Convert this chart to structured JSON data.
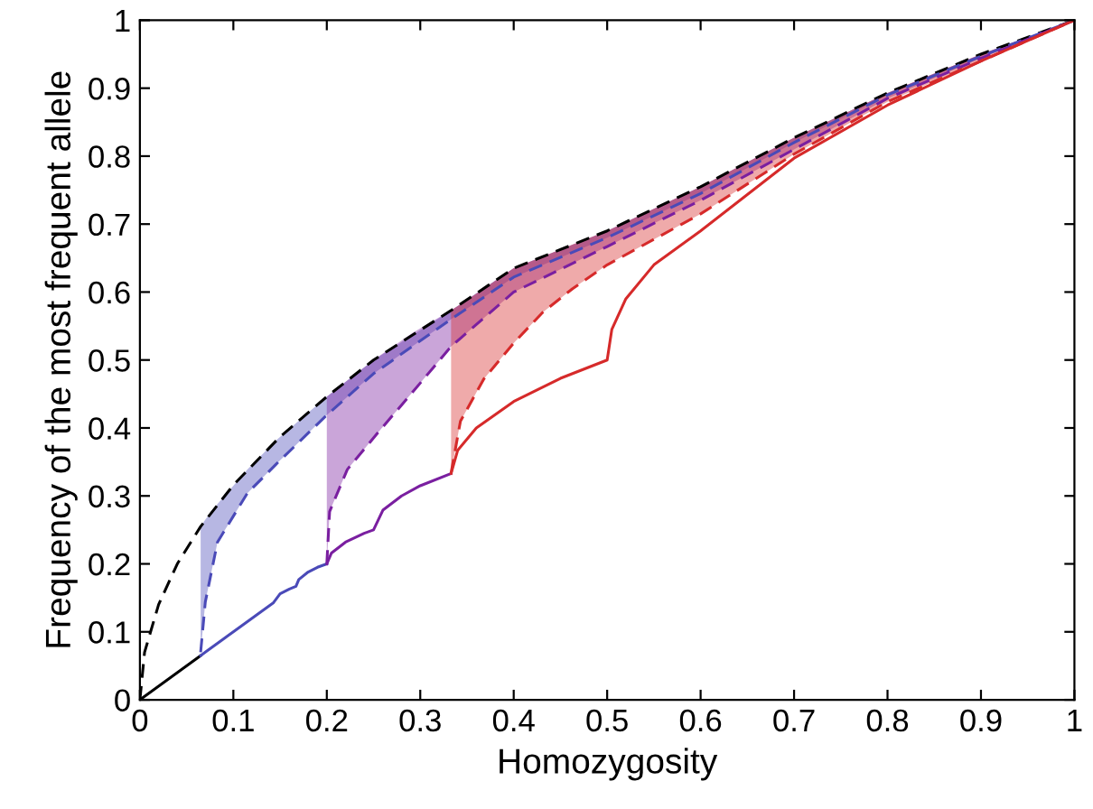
{
  "chart_data": {
    "type": "line",
    "xlabel": "Homozygosity",
    "ylabel": "Frequency of the most frequent allele",
    "xlim": [
      0,
      1
    ],
    "ylim": [
      0,
      1
    ],
    "xticks": [
      0,
      0.1,
      0.2,
      0.3,
      0.4,
      0.5,
      0.6,
      0.7,
      0.8,
      0.9,
      1
    ],
    "yticks": [
      0,
      0.1,
      0.2,
      0.3,
      0.4,
      0.5,
      0.6,
      0.7,
      0.8,
      0.9,
      1
    ],
    "grid": false,
    "legend": false,
    "marker": "none",
    "series": [
      {
        "color": "#000000",
        "line_style": "dashed",
        "x": [
          0,
          0.005,
          0.02,
          0.04,
          0.065,
          0.1,
          0.15,
          0.2,
          0.25,
          0.333,
          0.4,
          0.5,
          0.6,
          0.7,
          0.8,
          0.9,
          1
        ],
        "values": [
          0,
          0.07,
          0.14,
          0.2,
          0.255,
          0.316,
          0.387,
          0.446,
          0.5,
          0.573,
          0.635,
          0.69,
          0.755,
          0.827,
          0.893,
          0.95,
          1
        ]
      },
      {
        "color": "#4a4ab8",
        "line_style": "dashed",
        "x": [
          0.065,
          0.07,
          0.083,
          0.115,
          0.146,
          0.2,
          0.25,
          0.333,
          0.4,
          0.5,
          0.6,
          0.7,
          0.8,
          0.9,
          1
        ],
        "values": [
          0.07,
          0.144,
          0.232,
          0.304,
          0.347,
          0.419,
          0.48,
          0.56,
          0.622,
          0.68,
          0.745,
          0.82,
          0.89,
          0.947,
          1
        ],
        "lower": [
          0.07,
          0.144,
          0.232,
          0.304,
          0.347,
          0.419,
          0.48,
          0.56,
          0.622,
          0.68,
          0.745,
          0.82,
          0.89,
          0.947,
          1
        ],
        "upper": [
          0.255,
          0.265,
          0.288,
          0.339,
          0.382,
          0.446,
          0.5,
          0.573,
          0.635,
          0.69,
          0.755,
          0.827,
          0.893,
          0.95,
          1
        ]
      },
      {
        "color": "#7a1fa0",
        "line_style": "dashed",
        "x": [
          0.2,
          0.203,
          0.222,
          0.254,
          0.292,
          0.333,
          0.4,
          0.5,
          0.6,
          0.7,
          0.8,
          0.9,
          1
        ],
        "values": [
          0.2,
          0.277,
          0.339,
          0.392,
          0.453,
          0.52,
          0.6,
          0.667,
          0.735,
          0.81,
          0.885,
          0.944,
          1
        ],
        "lower": [
          0.2,
          0.277,
          0.339,
          0.392,
          0.453,
          0.52,
          0.6,
          0.667,
          0.735,
          0.81,
          0.885,
          0.944,
          1
        ],
        "upper": [
          0.446,
          0.449,
          0.47,
          0.504,
          0.54,
          0.573,
          0.635,
          0.69,
          0.755,
          0.827,
          0.893,
          0.95,
          1
        ]
      },
      {
        "color": "#d62a2a",
        "line_style": "dashed",
        "x": [
          0.333,
          0.343,
          0.368,
          0.4,
          0.431,
          0.463,
          0.5,
          0.6,
          0.7,
          0.8,
          0.9,
          1
        ],
        "values": [
          0.334,
          0.41,
          0.472,
          0.525,
          0.57,
          0.605,
          0.64,
          0.715,
          0.803,
          0.88,
          0.94,
          1
        ],
        "lower": [
          0.334,
          0.41,
          0.472,
          0.525,
          0.57,
          0.605,
          0.64,
          0.715,
          0.803,
          0.88,
          0.94,
          1
        ],
        "upper": [
          0.573,
          0.582,
          0.605,
          0.635,
          0.652,
          0.67,
          0.69,
          0.755,
          0.827,
          0.893,
          0.95,
          1
        ]
      },
      {
        "color": "#000000",
        "line_style": "solid",
        "x": [
          0,
          0.065
        ],
        "values": [
          0,
          0.065
        ]
      },
      {
        "color": "#4a4ab8",
        "line_style": "solid",
        "x": [
          0.065,
          0.071,
          0.077,
          0.083,
          0.091,
          0.1,
          0.111,
          0.125,
          0.143,
          0.15,
          0.16,
          0.167,
          0.17,
          0.18,
          0.19,
          0.2
        ],
        "values": [
          0.065,
          0.071,
          0.077,
          0.083,
          0.091,
          0.1,
          0.111,
          0.125,
          0.143,
          0.156,
          0.163,
          0.167,
          0.177,
          0.188,
          0.195,
          0.2
        ]
      },
      {
        "color": "#7a1fa0",
        "line_style": "solid",
        "x": [
          0.2,
          0.205,
          0.22,
          0.24,
          0.25,
          0.26,
          0.28,
          0.3,
          0.333
        ],
        "values": [
          0.2,
          0.216,
          0.232,
          0.245,
          0.25,
          0.279,
          0.3,
          0.315,
          0.333
        ]
      },
      {
        "color": "#d62a2a",
        "line_style": "solid",
        "x": [
          0.333,
          0.34,
          0.36,
          0.4,
          0.45,
          0.5,
          0.505,
          0.52,
          0.55,
          0.6,
          0.7,
          0.8,
          0.9,
          1
        ],
        "values": [
          0.333,
          0.367,
          0.4,
          0.439,
          0.473,
          0.5,
          0.545,
          0.59,
          0.64,
          0.69,
          0.797,
          0.875,
          0.94,
          1
        ]
      }
    ]
  }
}
